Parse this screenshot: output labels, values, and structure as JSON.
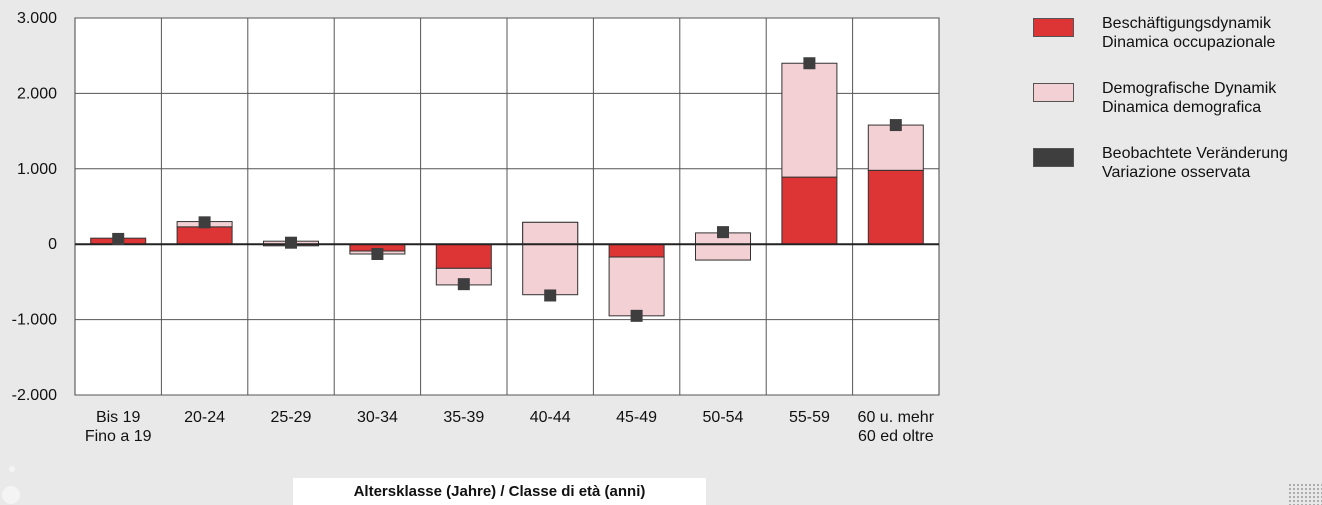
{
  "chart_data": {
    "type": "bar",
    "stacked": true,
    "categories": [
      [
        "Bis 19",
        "Fino a 19"
      ],
      [
        "20-24"
      ],
      [
        "25-29"
      ],
      [
        "30-34"
      ],
      [
        "35-39"
      ],
      [
        "40-44"
      ],
      [
        "45-49"
      ],
      [
        "50-54"
      ],
      [
        "55-59"
      ],
      [
        "60 u. mehr",
        "60 ed oltre"
      ]
    ],
    "series": [
      {
        "name": "Beschäftigungsdynamik\nDinamica occupazionale",
        "kind": "bar",
        "color": "#dd3535",
        "values": [
          80,
          230,
          -20,
          -90,
          -320,
          290,
          -170,
          -210,
          890,
          980
        ]
      },
      {
        "name": "Demografische Dynamik\nDinamica demografica",
        "kind": "bar",
        "color": "#f3d0d4",
        "values": [
          0,
          70,
          60,
          -40,
          -220,
          -960,
          -780,
          360,
          1510,
          600
        ]
      },
      {
        "name": "Beobachtete Veränderung\nVariazione osservata",
        "kind": "marker",
        "color": "#3e3e3e",
        "values": [
          70,
          290,
          20,
          -130,
          -530,
          -680,
          -950,
          160,
          2400,
          1580
        ]
      }
    ],
    "ylim": [
      -2000,
      3000
    ],
    "yticks": [
      -2000,
      -1000,
      0,
      1000,
      2000,
      3000
    ],
    "ytick_labels": [
      "-2.000",
      "-1.000",
      "0",
      "1.000",
      "2.000",
      "3.000"
    ],
    "xlabel": "Altersklasse (Jahre) / Classe di età (anni)",
    "ylabel": "",
    "title": "",
    "grid": true,
    "legend_position": "right"
  }
}
